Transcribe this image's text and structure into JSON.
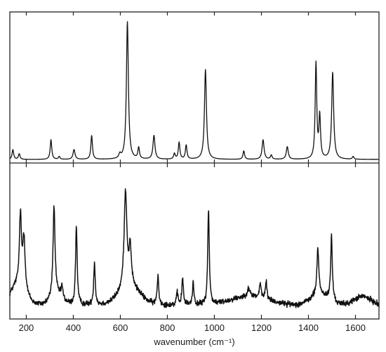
{
  "chart_data": [
    {
      "type": "line",
      "panel": "top",
      "title": "",
      "xlabel": "",
      "ylabel": "",
      "xlim": [
        130,
        1700
      ],
      "ylim": [
        0,
        1.05
      ],
      "grid": false,
      "series": [
        {
          "baseline": 0.02,
          "peaks": [
            {
              "x": 143,
              "y": 0.07,
              "w": 4
            },
            {
              "x": 170,
              "y": 0.04,
              "w": 4
            },
            {
              "x": 305,
              "y": 0.14,
              "w": 4
            },
            {
              "x": 340,
              "y": 0.02,
              "w": 4
            },
            {
              "x": 403,
              "y": 0.07,
              "w": 5
            },
            {
              "x": 478,
              "y": 0.17,
              "w": 4
            },
            {
              "x": 598,
              "y": 0.03,
              "w": 5
            },
            {
              "x": 630,
              "y": 0.98,
              "w": 5
            },
            {
              "x": 678,
              "y": 0.08,
              "w": 4
            },
            {
              "x": 743,
              "y": 0.17,
              "w": 5
            },
            {
              "x": 830,
              "y": 0.04,
              "w": 4
            },
            {
              "x": 850,
              "y": 0.12,
              "w": 4
            },
            {
              "x": 880,
              "y": 0.1,
              "w": 4
            },
            {
              "x": 962,
              "y": 0.64,
              "w": 5
            },
            {
              "x": 1125,
              "y": 0.06,
              "w": 4
            },
            {
              "x": 1207,
              "y": 0.14,
              "w": 5
            },
            {
              "x": 1242,
              "y": 0.03,
              "w": 4
            },
            {
              "x": 1310,
              "y": 0.09,
              "w": 5
            },
            {
              "x": 1432,
              "y": 0.68,
              "w": 4
            },
            {
              "x": 1448,
              "y": 0.3,
              "w": 4
            },
            {
              "x": 1503,
              "y": 0.62,
              "w": 5
            },
            {
              "x": 1590,
              "y": 0.02,
              "w": 4
            }
          ]
        }
      ]
    },
    {
      "type": "line",
      "panel": "bottom",
      "title": "",
      "xlabel": "wavenumber (cm⁻¹)",
      "ylabel": "",
      "xlim": [
        130,
        1700
      ],
      "ylim": [
        0,
        1.05
      ],
      "grid": false,
      "x_ticks": [
        200,
        400,
        600,
        800,
        1000,
        1200,
        1400,
        1600
      ],
      "x_tick_labels": [
        "200",
        "400",
        "600",
        "800",
        "1000",
        "1200",
        "1400",
        "1600"
      ],
      "series": [
        {
          "baseline": 0.09,
          "noise": 0.012,
          "background": [
            {
              "x": 165,
              "y": 0.14,
              "w": 30
            },
            {
              "x": 330,
              "y": 0.07,
              "w": 25
            },
            {
              "x": 640,
              "y": 0.12,
              "w": 45
            },
            {
              "x": 1150,
              "y": 0.06,
              "w": 80
            },
            {
              "x": 1450,
              "y": 0.07,
              "w": 40
            },
            {
              "x": 1630,
              "y": 0.06,
              "w": 35
            }
          ],
          "peaks": [
            {
              "x": 175,
              "y": 0.48,
              "w": 5
            },
            {
              "x": 190,
              "y": 0.36,
              "w": 6
            },
            {
              "x": 318,
              "y": 0.62,
              "w": 5
            },
            {
              "x": 352,
              "y": 0.08,
              "w": 4
            },
            {
              "x": 413,
              "y": 0.55,
              "w": 4
            },
            {
              "x": 490,
              "y": 0.29,
              "w": 4
            },
            {
              "x": 622,
              "y": 0.67,
              "w": 7
            },
            {
              "x": 642,
              "y": 0.26,
              "w": 6
            },
            {
              "x": 760,
              "y": 0.2,
              "w": 4
            },
            {
              "x": 842,
              "y": 0.08,
              "w": 4
            },
            {
              "x": 865,
              "y": 0.18,
              "w": 4
            },
            {
              "x": 910,
              "y": 0.15,
              "w": 4
            },
            {
              "x": 975,
              "y": 0.65,
              "w": 4
            },
            {
              "x": 1145,
              "y": 0.05,
              "w": 8
            },
            {
              "x": 1195,
              "y": 0.1,
              "w": 4
            },
            {
              "x": 1220,
              "y": 0.12,
              "w": 4
            },
            {
              "x": 1440,
              "y": 0.32,
              "w": 5
            },
            {
              "x": 1498,
              "y": 0.45,
              "w": 4
            }
          ]
        }
      ]
    }
  ]
}
